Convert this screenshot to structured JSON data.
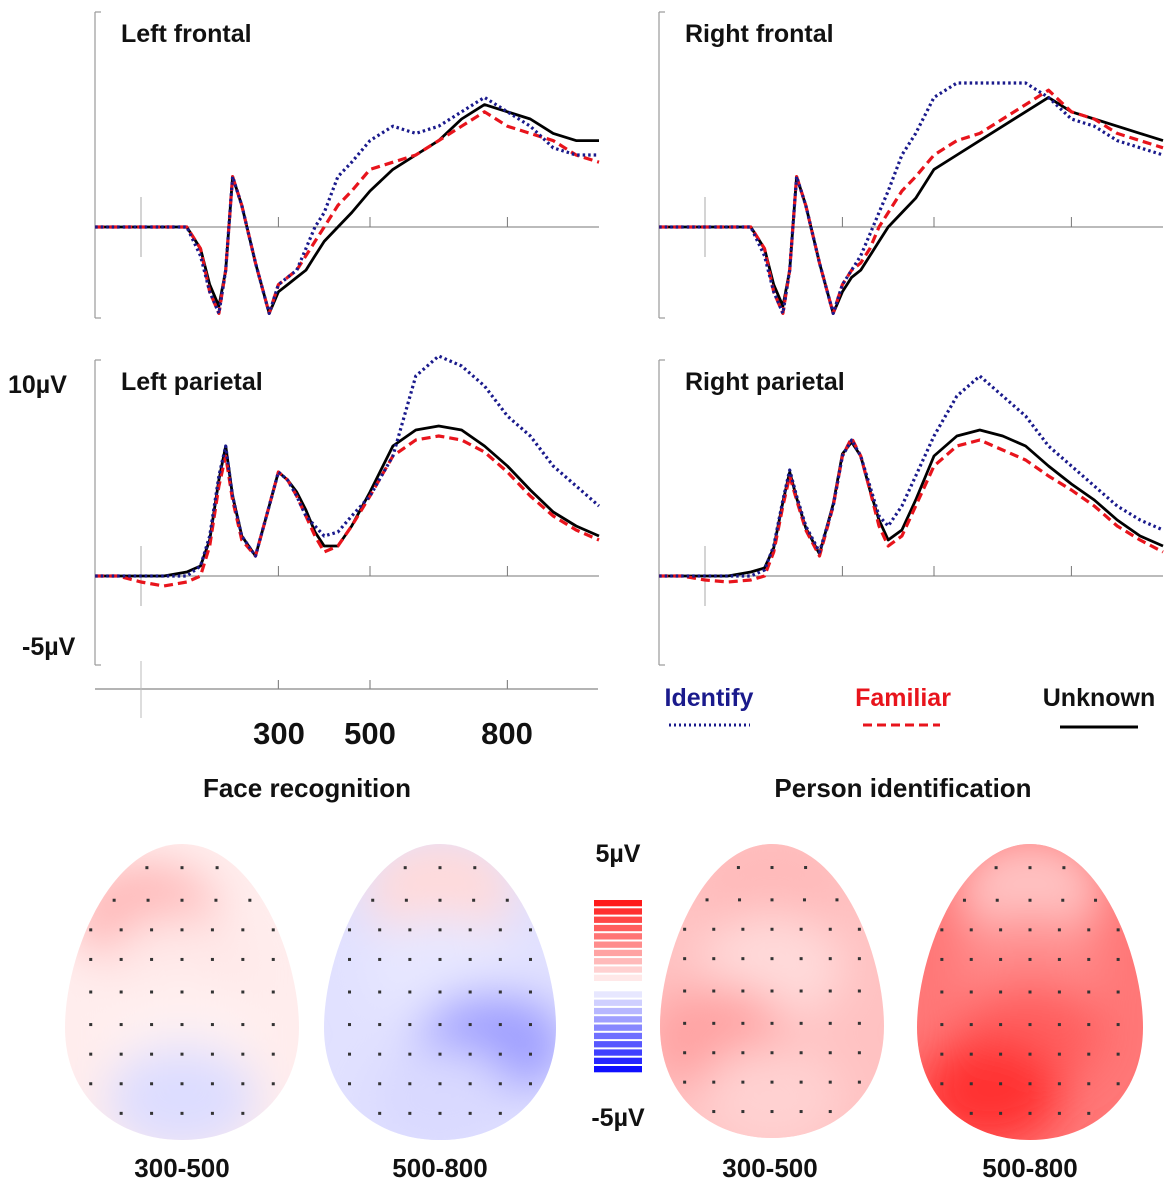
{
  "chart_data": [
    {
      "type": "line",
      "panel": "Left frontal",
      "title": "Left frontal",
      "x": [
        -100,
        -50,
        0,
        50,
        100,
        130,
        150,
        170,
        185,
        200,
        220,
        250,
        280,
        300,
        320,
        340,
        360,
        380,
        400,
        430,
        460,
        500,
        550,
        600,
        650,
        700,
        750,
        800,
        850,
        900,
        950,
        1000
      ],
      "series": [
        {
          "name": "Identify",
          "values": [
            0,
            0,
            0,
            0,
            0,
            -4,
            -9,
            -12,
            -6,
            7,
            3,
            -5,
            -12,
            -8,
            -7,
            -6,
            -3,
            0,
            2,
            7,
            9,
            12,
            14,
            13,
            14,
            16,
            18,
            16,
            14,
            11,
            10,
            10
          ]
        },
        {
          "name": "Familiar",
          "values": [
            0,
            0,
            0,
            0,
            0,
            -3,
            -9,
            -12,
            -6,
            7,
            3,
            -5,
            -12,
            -8,
            -7,
            -6,
            -4,
            -2,
            0,
            3,
            5,
            8,
            9,
            10,
            12,
            14,
            16,
            14,
            13,
            12,
            10,
            9
          ]
        },
        {
          "name": "Unknown",
          "values": [
            0,
            0,
            0,
            0,
            0,
            -3,
            -8,
            -11,
            -6,
            7,
            3,
            -5,
            -12,
            -9,
            -8,
            -7,
            -6,
            -4,
            -2,
            0,
            2,
            5,
            8,
            10,
            12,
            15,
            17,
            16,
            15,
            13,
            12,
            12
          ]
        }
      ]
    },
    {
      "type": "line",
      "panel": "Right frontal",
      "title": "Right frontal",
      "x": [
        -100,
        -50,
        0,
        50,
        100,
        130,
        150,
        170,
        185,
        200,
        220,
        250,
        280,
        300,
        320,
        340,
        360,
        380,
        400,
        430,
        460,
        500,
        550,
        600,
        650,
        700,
        750,
        800,
        850,
        900,
        950,
        1000
      ],
      "series": [
        {
          "name": "Identify",
          "values": [
            0,
            0,
            0,
            0,
            0,
            -4,
            -9,
            -12,
            -6,
            7,
            3,
            -5,
            -12,
            -8,
            -6,
            -4,
            -1,
            2,
            5,
            10,
            13,
            18,
            20,
            20,
            20,
            20,
            18,
            15,
            14,
            12,
            11,
            10
          ]
        },
        {
          "name": "Familiar",
          "values": [
            0,
            0,
            0,
            0,
            0,
            -3,
            -9,
            -12,
            -6,
            7,
            3,
            -5,
            -12,
            -8,
            -6,
            -5,
            -3,
            0,
            2,
            5,
            7,
            10,
            12,
            13,
            15,
            17,
            19,
            16,
            15,
            13,
            12,
            11
          ]
        },
        {
          "name": "Unknown",
          "values": [
            0,
            0,
            0,
            0,
            0,
            -3,
            -8,
            -11,
            -6,
            7,
            3,
            -5,
            -12,
            -9,
            -7,
            -6,
            -4,
            -2,
            0,
            2,
            4,
            8,
            10,
            12,
            14,
            16,
            18,
            16,
            15,
            14,
            13,
            12
          ]
        }
      ]
    },
    {
      "type": "line",
      "panel": "Left parietal",
      "title": "Left parietal",
      "x": [
        -100,
        -50,
        0,
        50,
        100,
        130,
        150,
        170,
        185,
        200,
        220,
        250,
        280,
        300,
        320,
        340,
        360,
        380,
        400,
        430,
        460,
        500,
        550,
        600,
        650,
        700,
        750,
        800,
        850,
        900,
        950,
        1000
      ],
      "series": [
        {
          "name": "Identify",
          "values": [
            0,
            0,
            0,
            0,
            0,
            0.5,
            2,
            5,
            6.5,
            4,
            2,
            1,
            3.5,
            5.2,
            4.8,
            4,
            3,
            2.5,
            2,
            2.2,
            3,
            4,
            6,
            10,
            11,
            10.5,
            9.5,
            8,
            7,
            5.5,
            4.5,
            3.5
          ]
        },
        {
          "name": "Familiar",
          "values": [
            0,
            0,
            -0.3,
            -0.5,
            -0.3,
            0,
            1.5,
            4.5,
            6,
            3.8,
            1.8,
            1,
            3.5,
            5.2,
            4.8,
            4,
            3,
            2,
            1.2,
            1.5,
            2.5,
            4,
            6,
            6.8,
            7,
            6.8,
            6.2,
            5.2,
            4,
            3,
            2.3,
            1.8
          ]
        },
        {
          "name": "Unknown",
          "values": [
            0,
            0,
            0,
            0,
            0.2,
            0.5,
            1.8,
            4.8,
            6.5,
            4,
            2,
            1,
            3.5,
            5.2,
            4.8,
            4.2,
            3.3,
            2.2,
            1.5,
            1.5,
            2.5,
            4.2,
            6.5,
            7.3,
            7.5,
            7.3,
            6.5,
            5.5,
            4.3,
            3.2,
            2.5,
            2
          ]
        }
      ]
    },
    {
      "type": "line",
      "panel": "Right parietal",
      "title": "Right parietal",
      "x": [
        -100,
        -50,
        0,
        50,
        100,
        130,
        150,
        170,
        185,
        200,
        220,
        250,
        280,
        300,
        320,
        340,
        360,
        380,
        400,
        430,
        460,
        500,
        550,
        600,
        650,
        700,
        750,
        800,
        850,
        900,
        950,
        1000
      ],
      "series": [
        {
          "name": "Identify",
          "values": [
            0,
            0,
            0,
            0,
            0,
            0.3,
            1.5,
            3.8,
            5.3,
            4,
            2.5,
            1.2,
            3.5,
            6,
            6.8,
            6,
            4.5,
            3,
            2.5,
            3.5,
            5,
            7,
            9,
            10,
            9,
            8,
            6.5,
            5.5,
            4.5,
            3.5,
            2.8,
            2.3
          ]
        },
        {
          "name": "Familiar",
          "values": [
            0,
            0,
            -0.2,
            -0.3,
            -0.2,
            0,
            1.2,
            3.5,
            5,
            3.8,
            2.3,
            1,
            3.5,
            6,
            6.9,
            6,
            4.3,
            2.5,
            1.5,
            2,
            3.5,
            5.5,
            6.5,
            6.8,
            6.3,
            5.8,
            5,
            4.3,
            3.5,
            2.5,
            1.8,
            1.2
          ]
        },
        {
          "name": "Unknown",
          "values": [
            0,
            0,
            0,
            0,
            0.2,
            0.4,
            1.4,
            3.7,
            5.2,
            3.9,
            2.4,
            1.1,
            3.6,
            6.1,
            6.7,
            6,
            4.3,
            2.8,
            1.8,
            2.3,
            3.8,
            6,
            7,
            7.3,
            7,
            6.5,
            5.5,
            4.6,
            3.8,
            2.8,
            2,
            1.5
          ]
        }
      ]
    },
    {
      "type": "heatmap",
      "panel": "Face recognition 300-500",
      "title": "Face recognition",
      "window": "300-500",
      "colorbar": {
        "max": "5µV",
        "min": "-5µV",
        "range": [
          -5,
          5
        ]
      },
      "regions": [
        {
          "region": "frontal-left",
          "value": 1.5
        },
        {
          "region": "central",
          "value": 0.5
        },
        {
          "region": "parietal",
          "value": 0.3
        },
        {
          "region": "occipital",
          "value": -0.7
        }
      ]
    },
    {
      "type": "heatmap",
      "panel": "Face recognition 500-800",
      "title": "Face recognition",
      "window": "500-800",
      "colorbar": {
        "max": "5µV",
        "min": "-5µV",
        "range": [
          -5,
          5
        ]
      },
      "regions": [
        {
          "region": "frontal",
          "value": 0.8
        },
        {
          "region": "central",
          "value": -0.5
        },
        {
          "region": "parietal-right",
          "value": -2
        },
        {
          "region": "occipital",
          "value": -0.8
        }
      ]
    },
    {
      "type": "heatmap",
      "panel": "Person identification 300-500",
      "title": "Person identification",
      "window": "300-500",
      "colorbar": {
        "max": "5µV",
        "min": "-5µV",
        "range": [
          -5,
          5
        ]
      },
      "regions": [
        {
          "region": "frontal",
          "value": 1.5
        },
        {
          "region": "central",
          "value": 0.8
        },
        {
          "region": "parietal-left",
          "value": 2
        },
        {
          "region": "occipital",
          "value": 1
        }
      ]
    },
    {
      "type": "heatmap",
      "panel": "Person identification 500-800",
      "title": "Person identification",
      "window": "500-800",
      "colorbar": {
        "max": "5µV",
        "min": "-5µV",
        "range": [
          -5,
          5
        ]
      },
      "regions": [
        {
          "region": "frontal",
          "value": 1.3
        },
        {
          "region": "central",
          "value": 2.5
        },
        {
          "region": "parietal",
          "value": 3.5
        },
        {
          "region": "occipital-left",
          "value": 4.5
        }
      ]
    }
  ],
  "figure": {
    "y_labels": {
      "top": "10µV",
      "bottom": "-5µV"
    },
    "x_ticks": [
      "300",
      "500",
      "800"
    ],
    "legend": [
      {
        "name": "Identify",
        "color": "#1a1a8c",
        "style": "dotted"
      },
      {
        "name": "Familiar",
        "color": "#e8141c",
        "style": "dashed"
      },
      {
        "name": "Unknown",
        "color": "#000000",
        "style": "solid"
      }
    ],
    "section_titles": {
      "face": "Face recognition",
      "person": "Person identification"
    },
    "colorbar": {
      "max_label": "5µV",
      "min_label": "-5µV"
    },
    "map_windows": [
      "300-500",
      "500-800",
      "300-500",
      "500-800"
    ],
    "colors": {
      "identify": "#1a1a8c",
      "familiar": "#e8141c",
      "unknown": "#000000"
    }
  }
}
